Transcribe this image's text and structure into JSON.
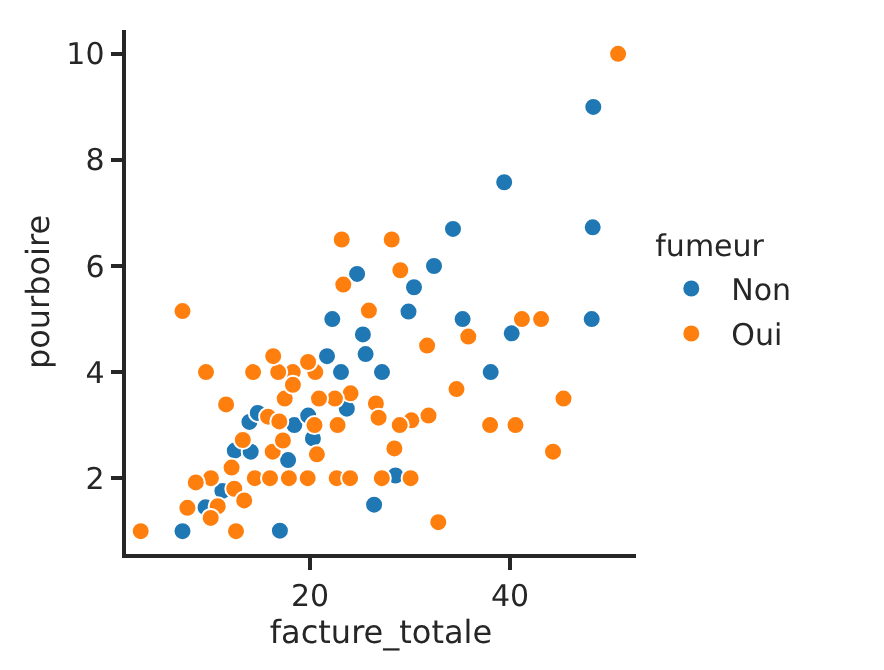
{
  "chart_data": {
    "type": "scatter",
    "xlabel": "facture_totale",
    "ylabel": "pourboire",
    "legend_title": "fumeur",
    "xlim": [
      1.6,
      52.6
    ],
    "ylim": [
      0.57,
      10.45
    ],
    "xticks": [
      20,
      40
    ],
    "yticks": [
      2,
      4,
      6,
      8,
      10
    ],
    "legend": "right",
    "marker": "circle",
    "series": [
      {
        "name": "Non",
        "color": "#1f77b4",
        "x": [
          48.33,
          39.42,
          48.27,
          34.3,
          32.4,
          24.71,
          30.4,
          48.17,
          35.26,
          29.85,
          22.23,
          40.17,
          25.29,
          25.56,
          38.07,
          27.2,
          23.1,
          21.7,
          23.68,
          13.94,
          14.78,
          18.43,
          20.29,
          12.48,
          14.07,
          17.81,
          9.55,
          7.25,
          16.99,
          26.41,
          28.55,
          19.82,
          11.24
        ],
        "values": [
          9.0,
          7.58,
          6.73,
          6.7,
          6.0,
          5.85,
          5.6,
          5.0,
          5.0,
          5.14,
          5.0,
          4.73,
          4.71,
          4.34,
          4.0,
          4.0,
          4.0,
          4.3,
          3.31,
          3.06,
          3.23,
          3.0,
          2.75,
          2.52,
          2.5,
          2.34,
          1.45,
          1.0,
          1.01,
          1.5,
          2.05,
          3.18,
          1.76
        ]
      },
      {
        "name": "Oui",
        "color": "#ff7f0e",
        "x": [
          50.81,
          3.07,
          7.25,
          44.3,
          45.35,
          40.55,
          38.01,
          41.19,
          43.11,
          34.65,
          28.17,
          23.17,
          29.03,
          23.33,
          25.89,
          35.83,
          31.71,
          32.83,
          30.14,
          31.85,
          28.44,
          28.97,
          30.06,
          27.18,
          22.67,
          24.01,
          24.06,
          26.59,
          26.86,
          22.49,
          22.76,
          20.45,
          20.9,
          20.53,
          19.81,
          18.28,
          16.82,
          16.32,
          14.31,
          9.6,
          11.61,
          17.47,
          18.29,
          15.81,
          16.93,
          13.28,
          16.27,
          17.29,
          20.69,
          12.16,
          10.09,
          14.48,
          16.0,
          17.89,
          19.77,
          8.58,
          10.77,
          12.43,
          13.42,
          7.74,
          10.07,
          12.6
        ],
        "values": [
          10.0,
          1.0,
          5.15,
          2.5,
          3.5,
          3.0,
          3.0,
          5.0,
          5.0,
          3.68,
          6.5,
          6.5,
          5.92,
          5.65,
          5.16,
          4.67,
          4.5,
          1.17,
          3.09,
          3.18,
          2.56,
          3.0,
          2.0,
          2.0,
          2.0,
          2.0,
          3.6,
          3.41,
          3.14,
          3.5,
          3.0,
          3.0,
          3.5,
          4.0,
          4.19,
          4.0,
          4.0,
          4.3,
          4.0,
          4.0,
          3.39,
          3.5,
          3.76,
          3.16,
          3.07,
          2.72,
          2.5,
          2.71,
          2.45,
          2.2,
          2.0,
          2.0,
          2.0,
          2.0,
          2.0,
          1.92,
          1.47,
          1.8,
          1.58,
          1.44,
          1.25,
          1.0
        ]
      }
    ]
  }
}
